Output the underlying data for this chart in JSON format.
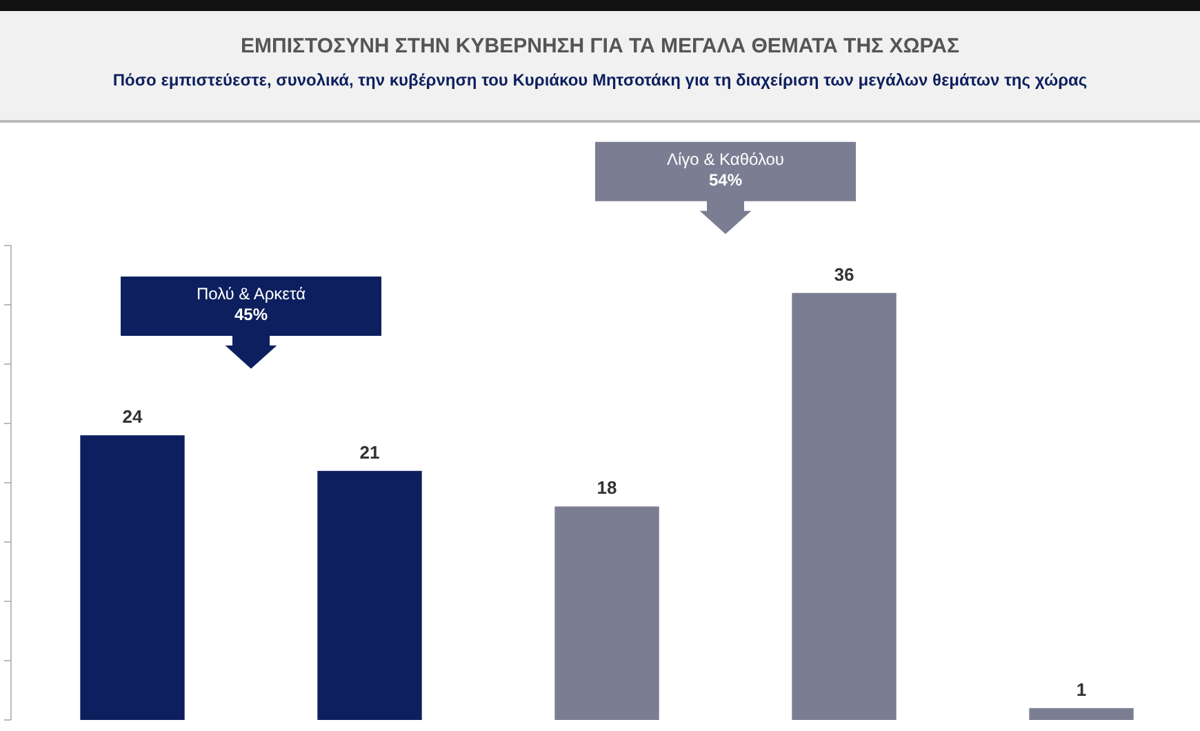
{
  "chart_data": {
    "type": "bar",
    "title": "ΕΜΠΙΣΤΟΣΥΝΗ ΣΤΗΝ ΚΥΒΕΡΝΗΣΗ ΓΙΑ ΤΑ ΜΕΓΑΛΑ ΘΕΜΑΤΑ ΤΗΣ ΧΩΡΑΣ",
    "subtitle": "Πόσο εμπιστεύεστε, συνολικά, την κυβέρνηση του Κυριάκου Μητσοτάκη για τη διαχείριση των μεγάλων θεμάτων της χώρας",
    "categories": [
      null,
      null,
      null,
      null,
      null
    ],
    "values": [
      24,
      21,
      18,
      36,
      1
    ],
    "colors": [
      "#0d1f5e",
      "#0d1f5e",
      "#7b7e93",
      "#7b7e93",
      "#7b7e93"
    ],
    "ylim": [
      0,
      40
    ],
    "yticks": [
      {
        "value": 0,
        "label": null
      },
      {
        "value": 5,
        "label": null
      },
      {
        "value": 10,
        "label": null
      },
      {
        "value": 15,
        "label": null
      },
      {
        "value": 20,
        "label": null
      },
      {
        "value": 25,
        "label": null
      },
      {
        "value": 30,
        "label": null
      },
      {
        "value": 35,
        "label": null
      },
      {
        "value": 40,
        "label": null
      }
    ],
    "data_labels": true,
    "annotations": [
      "Πολύ & Αρκετά\n45%",
      "Λίγο & Καθόλου\n54%"
    ]
  }
}
